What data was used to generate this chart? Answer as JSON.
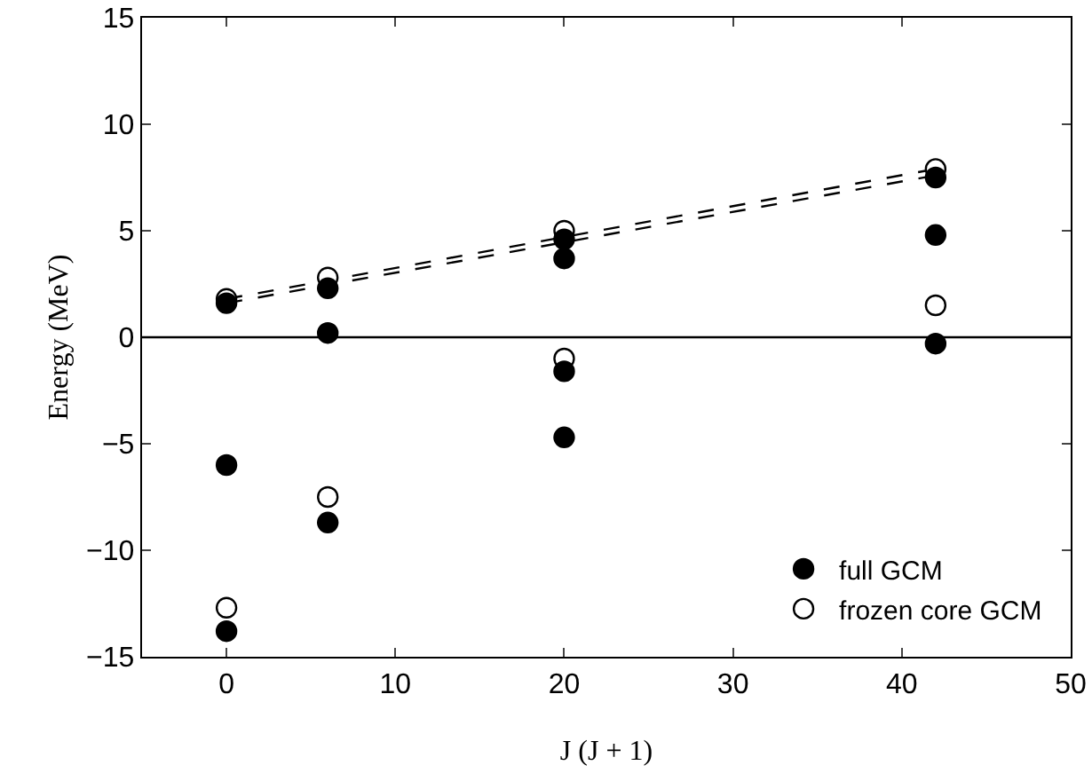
{
  "chart_data": {
    "type": "scatter",
    "xlabel": "J (J + 1)",
    "ylabel": "Energy (MeV)",
    "xlim": [
      -5,
      50
    ],
    "xticks": [
      0,
      10,
      20,
      30,
      40,
      50
    ],
    "ylim": [
      -15,
      15
    ],
    "yticks": [
      -15,
      -10,
      -5,
      0,
      5,
      10,
      15
    ],
    "grid": false,
    "legend": "bottom right",
    "ref_lines": [
      {
        "axis": "y",
        "value": 0,
        "color": "#000000",
        "line_style": "solid"
      }
    ],
    "series": [
      {
        "name": "full GCM",
        "color": "#000000",
        "marker": "circle",
        "x": [
          0,
          0,
          0,
          6,
          6,
          6,
          20,
          20,
          20,
          20,
          42,
          42,
          42
        ],
        "values": [
          1.6,
          -6.0,
          -13.8,
          2.3,
          0.2,
          -8.7,
          4.6,
          3.7,
          -1.6,
          -4.7,
          7.5,
          4.8,
          -0.3
        ]
      },
      {
        "name": "frozen core GCM",
        "color": "#ffffff",
        "marker": "circle",
        "x": [
          0,
          0,
          6,
          6,
          20,
          20,
          42,
          42
        ],
        "values": [
          1.8,
          -12.7,
          2.8,
          -7.5,
          5.0,
          -1.0,
          7.9,
          1.5
        ]
      },
      {
        "type": "line",
        "color": "#000000",
        "line_style": "dashed",
        "marker": "none",
        "x": [
          0,
          42
        ],
        "values": [
          1.8,
          7.9
        ]
      },
      {
        "type": "line",
        "color": "#000000",
        "line_style": "dashed",
        "marker": "none",
        "x": [
          0,
          42
        ],
        "values": [
          1.6,
          7.6
        ]
      }
    ]
  }
}
